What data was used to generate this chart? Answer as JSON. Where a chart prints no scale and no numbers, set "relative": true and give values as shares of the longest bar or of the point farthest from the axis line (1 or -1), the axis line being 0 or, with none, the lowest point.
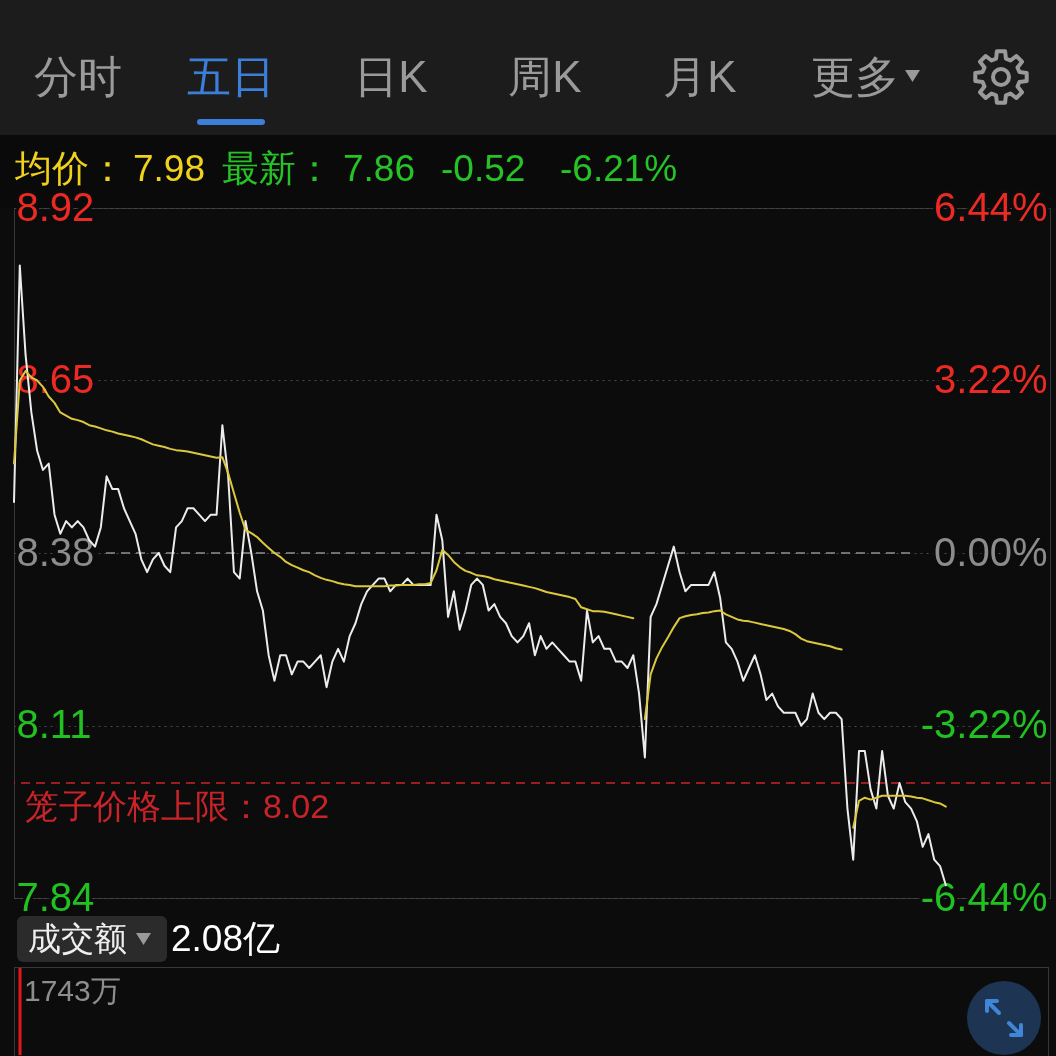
{
  "chart_data": [
    {
      "type": "other",
      "annotations": [
        "分时",
        "五日",
        "日K",
        "周K",
        "月K",
        "更多"
      ],
      "colors": [
        "#9a9a9a",
        "#3b7fd8",
        "#9a9a9a",
        "#9a9a9a",
        "#9a9a9a",
        "#9a9a9a"
      ]
    },
    {
      "type": "other",
      "annotations": [
        "均价：",
        "7.98",
        "最新：",
        "7.86",
        "-0.52",
        "-6.21%"
      ],
      "colors": [
        "#f1d21a",
        "#f1d21a",
        "#25c325",
        "#25c325",
        "#25c325",
        "#25c325"
      ]
    },
    {
      "type": "line",
      "categories": [
        null,
        null,
        null,
        null,
        null,
        null,
        null,
        null,
        null,
        null,
        null,
        null,
        null,
        null,
        null,
        null,
        null,
        null,
        null,
        null,
        null,
        null,
        null,
        null,
        null,
        null,
        null,
        null,
        null,
        null,
        null,
        null,
        null,
        null,
        null,
        null,
        null,
        null,
        null,
        null,
        null,
        null,
        null,
        null,
        null,
        null,
        null,
        null,
        null,
        null,
        null,
        null,
        null,
        null,
        null,
        null,
        null,
        null,
        null,
        null,
        null,
        null,
        null,
        null,
        null,
        null,
        null,
        null,
        null,
        null,
        null,
        null,
        null,
        null,
        null,
        null,
        null,
        null,
        null,
        null,
        null,
        null,
        null,
        null,
        null,
        null,
        null,
        null,
        null,
        null,
        null,
        null,
        null,
        null,
        null,
        null,
        null,
        null,
        null,
        null,
        null,
        null,
        null,
        null,
        null,
        null,
        null,
        null,
        null,
        null,
        null,
        null,
        null,
        null,
        null,
        null,
        null,
        null,
        null,
        null,
        null,
        null,
        null,
        null,
        null,
        null,
        null,
        null,
        null,
        null,
        null,
        null,
        null,
        null,
        null,
        null,
        null,
        null,
        null,
        null,
        null,
        null,
        null,
        null,
        null,
        null,
        null,
        null,
        null,
        null,
        null,
        null,
        null,
        null,
        null,
        null,
        null,
        null,
        null,
        null,
        null,
        null,
        null,
        null,
        null,
        null,
        null,
        null,
        null,
        null,
        null,
        null,
        null,
        null,
        null,
        null,
        null,
        null,
        null,
        null
      ],
      "series": [
        {
          "color": "#ececec",
          "values": [
            8.46,
            8.83,
            8.69,
            8.6,
            8.54,
            8.51,
            8.52,
            8.44,
            8.41,
            8.43,
            8.42,
            8.43,
            8.42,
            8.4,
            8.39,
            8.42,
            8.5,
            8.48,
            8.48,
            8.45,
            8.43,
            8.41,
            8.37,
            8.35,
            8.37,
            8.38,
            8.36,
            8.35,
            8.42,
            8.43,
            8.45,
            8.45,
            8.44,
            8.43,
            8.44,
            8.44,
            8.58,
            8.5,
            8.35,
            8.34,
            8.43,
            8.38,
            8.32,
            8.29,
            8.22,
            8.18,
            8.22,
            8.22,
            8.19,
            8.21,
            8.21,
            8.2,
            8.21,
            8.22,
            8.17,
            8.21,
            8.23,
            8.21,
            8.25,
            8.27,
            8.3,
            8.32,
            8.33,
            8.34,
            8.34,
            8.32,
            8.33,
            8.33,
            8.34,
            8.33,
            8.33,
            8.33,
            8.33,
            8.44,
            8.4,
            8.28,
            8.32,
            8.26,
            8.29,
            8.33,
            8.34,
            8.33,
            8.29,
            8.3,
            8.28,
            8.27,
            8.25,
            8.24,
            8.25,
            8.27,
            8.22,
            8.25,
            8.23,
            8.24,
            8.23,
            8.22,
            8.21,
            8.21,
            8.18,
            8.29,
            8.24,
            8.25,
            8.23,
            8.23,
            8.21,
            8.21,
            8.2,
            8.22,
            8.16,
            8.06,
            8.28,
            8.3,
            8.33,
            8.36,
            8.39,
            8.35,
            8.32,
            8.33,
            8.33,
            8.33,
            8.33,
            8.35,
            8.31,
            8.24,
            8.23,
            8.21,
            8.18,
            8.2,
            8.22,
            8.19,
            8.15,
            8.16,
            8.14,
            8.13,
            8.13,
            8.13,
            8.11,
            8.12,
            8.16,
            8.13,
            8.12,
            8.13,
            8.13,
            8.12,
            7.98,
            7.9,
            8.07,
            8.07,
            8.01,
            7.98,
            8.07,
            8.0,
            7.98,
            8.02,
            7.99,
            7.98,
            7.96,
            7.92,
            7.94,
            7.9,
            7.89,
            7.86,
            null,
            null,
            null,
            null,
            null,
            null,
            null,
            null,
            null,
            null,
            null,
            null,
            null,
            null,
            null,
            null,
            null,
            null
          ]
        },
        {
          "color": "#dcc83c",
          "values": [
            8.52,
            8.65,
            8.665,
            8.655,
            8.65,
            8.64,
            8.625,
            8.615,
            8.6,
            8.595,
            8.59,
            8.588,
            8.585,
            8.58,
            8.578,
            8.575,
            8.572,
            8.57,
            8.567,
            8.565,
            8.563,
            8.561,
            8.558,
            8.554,
            8.55,
            8.548,
            8.546,
            8.543,
            8.541,
            8.54,
            8.539,
            8.537,
            8.535,
            8.533,
            8.531,
            8.529,
            8.53,
            8.505,
            8.474,
            8.443,
            8.416,
            8.411,
            8.405,
            8.396,
            8.388,
            8.38,
            8.374,
            8.366,
            8.361,
            8.357,
            8.353,
            8.35,
            8.345,
            8.341,
            8.338,
            8.336,
            8.333,
            8.331,
            8.33,
            8.328,
            8.328,
            8.328,
            8.328,
            8.328,
            8.328,
            8.329,
            8.329,
            8.33,
            8.33,
            8.33,
            8.331,
            8.331,
            8.333,
            8.353,
            8.385,
            8.377,
            8.366,
            8.358,
            8.352,
            8.349,
            8.345,
            8.344,
            8.342,
            8.339,
            8.337,
            8.335,
            8.333,
            8.331,
            8.329,
            8.327,
            8.325,
            8.322,
            8.319,
            8.317,
            8.315,
            8.313,
            8.311,
            8.308,
            8.295,
            8.292,
            8.289,
            8.289,
            8.288,
            8.286,
            8.284,
            8.282,
            8.28,
            8.278,
            null,
            8.12,
            8.19,
            8.215,
            8.233,
            8.248,
            8.264,
            8.278,
            8.281,
            8.283,
            8.284,
            8.286,
            8.287,
            8.289,
            8.29,
            8.284,
            8.28,
            8.276,
            8.274,
            8.273,
            8.271,
            8.269,
            8.267,
            8.265,
            8.263,
            8.261,
            8.258,
            8.253,
            8.246,
            8.242,
            8.24,
            8.238,
            8.236,
            8.234,
            8.231,
            8.229,
            null,
            7.95,
            7.992,
            7.997,
            7.994,
            7.997,
            8.0,
            8.0,
            8.0,
            8.0,
            8.0,
            7.999,
            7.997,
            7.996,
            7.993,
            7.99,
            7.988,
            7.983,
            null,
            null,
            null,
            null,
            null,
            null,
            null,
            null,
            null,
            null,
            null,
            null,
            null,
            null,
            null,
            null,
            null,
            null
          ]
        }
      ],
      "ylim": [
        7.84,
        8.92
      ],
      "yticks": [
        7.84,
        8.11,
        8.38,
        8.65,
        8.92
      ],
      "y2lim": [
        -6.44,
        6.44
      ],
      "y2ticks": [
        {
          "value": -6.44,
          "label": "-6.44%"
        },
        {
          "value": -3.22,
          "label": "-3.22%"
        },
        {
          "value": 0,
          "label": "0.00%"
        },
        {
          "value": 3.22,
          "label": "3.22%"
        },
        {
          "value": 6.44,
          "label": "6.44%"
        }
      ],
      "grid": "y",
      "ref_lines": [
        {
          "axis": "y2",
          "value": 0,
          "color": "#8e8e8e",
          "line_style": "dashed"
        },
        {
          "axis": "y",
          "value": 8.02,
          "color": "#c9232a",
          "line_style": "dashed",
          "label": "笼子价格上限：8.02"
        }
      ]
    },
    {
      "type": "other",
      "annotations": [
        "成交额",
        "2.08亿"
      ],
      "colors": [
        "#eeeeee",
        "#ffffff"
      ]
    },
    {
      "type": "bar",
      "relative": true,
      "categories": [
        null
      ],
      "values": [
        1
      ],
      "color": "#e3171c",
      "annotations": [
        "1743万"
      ]
    }
  ]
}
